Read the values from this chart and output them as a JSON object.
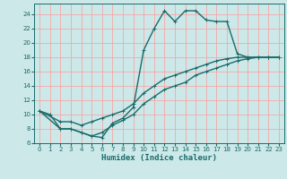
{
  "xlabel": "Humidex (Indice chaleur)",
  "background_color": "#cce8e8",
  "grid_color": "#ff9999",
  "line_color": "#1a6b6b",
  "xlim": [
    -0.5,
    23.5
  ],
  "ylim": [
    6,
    25.5
  ],
  "xticks": [
    0,
    1,
    2,
    3,
    4,
    5,
    6,
    7,
    8,
    9,
    10,
    11,
    12,
    13,
    14,
    15,
    16,
    17,
    18,
    19,
    20,
    21,
    22,
    23
  ],
  "yticks": [
    6,
    8,
    10,
    12,
    14,
    16,
    18,
    20,
    22,
    24
  ],
  "line1_x": [
    0,
    1,
    2,
    3,
    4,
    5,
    6,
    7,
    8,
    9,
    10,
    11,
    12,
    13,
    14,
    15,
    16,
    17,
    18,
    19,
    20,
    21,
    22,
    23
  ],
  "line1_y": [
    10.5,
    10,
    8,
    8,
    7.5,
    7,
    6.8,
    8.8,
    9.5,
    11,
    19,
    22,
    24.5,
    23,
    24.5,
    24.5,
    23.2,
    23,
    23,
    18.5,
    18,
    18,
    18,
    18
  ],
  "line2_x": [
    0,
    2,
    3,
    4,
    5,
    6,
    7,
    8,
    9,
    10,
    11,
    12,
    13,
    14,
    15,
    16,
    17,
    18,
    19,
    20,
    21,
    22,
    23
  ],
  "line2_y": [
    10.5,
    9,
    9,
    8.5,
    9,
    9.5,
    10,
    10.5,
    11.5,
    13,
    14,
    15,
    15.5,
    16,
    16.5,
    17,
    17.5,
    17.8,
    18,
    18,
    18,
    18,
    18
  ],
  "line3_x": [
    0,
    2,
    3,
    4,
    5,
    6,
    7,
    8,
    9,
    10,
    11,
    12,
    13,
    14,
    15,
    16,
    17,
    18,
    19,
    20,
    21,
    22,
    23
  ],
  "line3_y": [
    10.5,
    8,
    8,
    7.5,
    7,
    7.5,
    8.5,
    9.2,
    10,
    11.5,
    12.5,
    13.5,
    14,
    14.5,
    15.5,
    16,
    16.5,
    17,
    17.5,
    17.8,
    18,
    18,
    18
  ],
  "markersize": 3,
  "linewidth": 1.0
}
